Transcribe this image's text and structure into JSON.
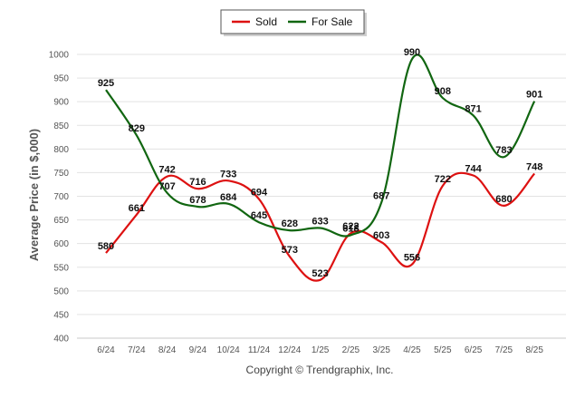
{
  "chart_data": {
    "type": "line",
    "categories": [
      "6/24",
      "7/24",
      "8/24",
      "9/24",
      "10/24",
      "11/24",
      "12/24",
      "1/25",
      "2/25",
      "3/25",
      "4/25",
      "5/25",
      "6/25",
      "7/25",
      "8/25"
    ],
    "series": [
      {
        "name": "Sold",
        "color": "#dd1111",
        "values": [
          580,
          661,
          742,
          716,
          733,
          694,
          573,
          523,
          622,
          603,
          556,
          722,
          744,
          680,
          748
        ]
      },
      {
        "name": "For Sale",
        "color": "#116611",
        "values": [
          925,
          829,
          707,
          678,
          684,
          645,
          628,
          633,
          618,
          687,
          990,
          908,
          871,
          783,
          901
        ]
      }
    ],
    "ylabel": "Average Price (in $,000)",
    "xlabel": "",
    "ylim": [
      400,
      1000
    ],
    "yticks": [
      "400",
      "450",
      "500",
      "550",
      "600",
      "650",
      "700",
      "750",
      "800",
      "850",
      "900",
      "950",
      "1000"
    ],
    "grid": "horizontal",
    "legend_position": "top-center",
    "credit": "Copyright © Trendgraphix, Inc."
  }
}
